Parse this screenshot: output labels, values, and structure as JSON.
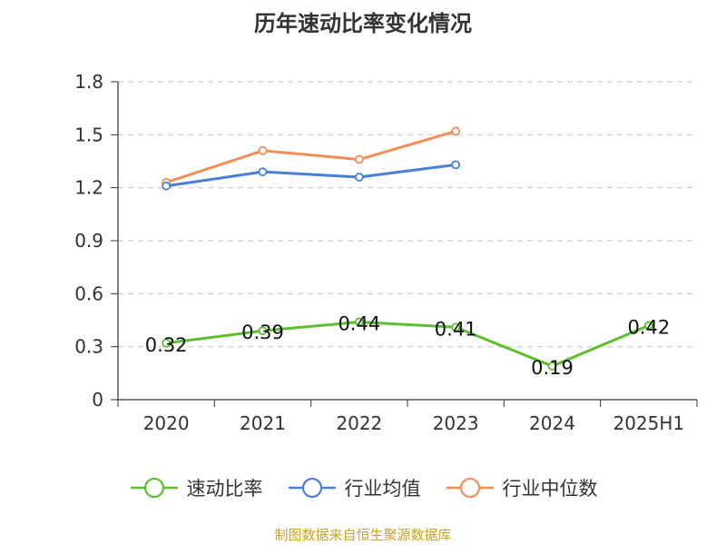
{
  "title": "历年速动比率变化情况",
  "source": "制图数据来自恒生聚源数据库",
  "chart_data": {
    "type": "line",
    "categories": [
      "2020",
      "2021",
      "2022",
      "2023",
      "2024",
      "2025H1"
    ],
    "y_ticks": [
      "0",
      "0.3",
      "0.6",
      "0.9",
      "1.2",
      "1.5",
      "1.8"
    ],
    "ylim": [
      0,
      1.8
    ],
    "grid": true,
    "legend_position": "bottom",
    "series": [
      {
        "name": "速动比率",
        "color": "#5cc02e",
        "values": [
          0.32,
          0.39,
          0.44,
          0.41,
          0.19,
          0.42
        ],
        "labels": [
          "0.32",
          "0.39",
          "0.44",
          "0.41",
          "0.19",
          "0.42"
        ]
      },
      {
        "name": "行业均值",
        "color": "#4a7fd6",
        "values": [
          1.21,
          1.29,
          1.26,
          1.33,
          null,
          null
        ]
      },
      {
        "name": "行业中位数",
        "color": "#f58d58",
        "values": [
          1.23,
          1.41,
          1.36,
          1.52,
          null,
          null
        ]
      }
    ]
  }
}
